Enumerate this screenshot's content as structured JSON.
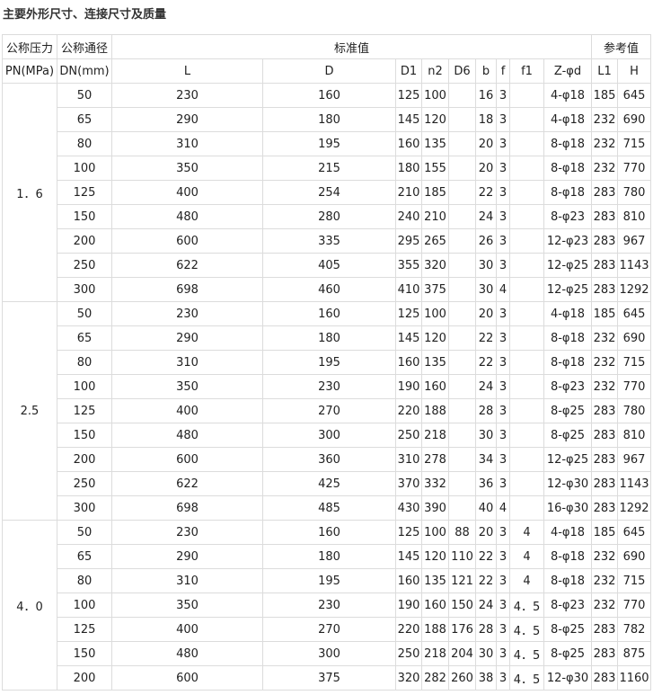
{
  "title": "主要外形尺寸、连接尺寸及质量",
  "header": {
    "pn": "公称压力",
    "dn": "公称通径",
    "std": "标准值",
    "ref": "参考值",
    "pn_unit": "PN(MPa)",
    "dn_unit": "DN(mm)",
    "cols": [
      "L",
      "D",
      "D1",
      "n2",
      "D6",
      "b",
      "f",
      "f1",
      "Z-φd",
      "L1",
      "H"
    ]
  },
  "groups": [
    {
      "pn": "1．6",
      "rows": [
        [
          "50",
          "230",
          "160",
          "125",
          "100",
          "",
          "16",
          "3",
          "",
          "4-φ18",
          "185",
          "645"
        ],
        [
          "65",
          "290",
          "180",
          "145",
          "120",
          "",
          "18",
          "3",
          "",
          "4-φ18",
          "232",
          "690"
        ],
        [
          "80",
          "310",
          "195",
          "160",
          "135",
          "",
          "20",
          "3",
          "",
          "8-φ18",
          "232",
          "715"
        ],
        [
          "100",
          "350",
          "215",
          "180",
          "155",
          "",
          "20",
          "3",
          "",
          "8-φ18",
          "232",
          "770"
        ],
        [
          "125",
          "400",
          "254",
          "210",
          "185",
          "",
          "22",
          "3",
          "",
          "8-φ18",
          "283",
          "780"
        ],
        [
          "150",
          "480",
          "280",
          "240",
          "210",
          "",
          "24",
          "3",
          "",
          "8-φ23",
          "283",
          "810"
        ],
        [
          "200",
          "600",
          "335",
          "295",
          "265",
          "",
          "26",
          "3",
          "",
          "12-φ23",
          "283",
          "967"
        ],
        [
          "250",
          "622",
          "405",
          "355",
          "320",
          "",
          "30",
          "3",
          "",
          "12-φ25",
          "283",
          "1143"
        ],
        [
          "300",
          "698",
          "460",
          "410",
          "375",
          "",
          "30",
          "4",
          "",
          "12-φ25",
          "283",
          "1292"
        ]
      ]
    },
    {
      "pn": "2.5",
      "rows": [
        [
          "50",
          "230",
          "160",
          "125",
          "100",
          "",
          "20",
          "3",
          "",
          "4-φ18",
          "185",
          "645"
        ],
        [
          "65",
          "290",
          "180",
          "145",
          "120",
          "",
          "22",
          "3",
          "",
          "8-φ18",
          "232",
          "690"
        ],
        [
          "80",
          "310",
          "195",
          "160",
          "135",
          "",
          "22",
          "3",
          "",
          "8-φ18",
          "232",
          "715"
        ],
        [
          "100",
          "350",
          "230",
          "190",
          "160",
          "",
          "24",
          "3",
          "",
          "8-φ23",
          "232",
          "770"
        ],
        [
          "125",
          "400",
          "270",
          "220",
          "188",
          "",
          "28",
          "3",
          "",
          "8-φ25",
          "283",
          "780"
        ],
        [
          "150",
          "480",
          "300",
          "250",
          "218",
          "",
          "30",
          "3",
          "",
          "8-φ25",
          "283",
          "810"
        ],
        [
          "200",
          "600",
          "360",
          "310",
          "278",
          "",
          "34",
          "3",
          "",
          "12-φ25",
          "283",
          "967"
        ],
        [
          "250",
          "622",
          "425",
          "370",
          "332",
          "",
          "36",
          "3",
          "",
          "12-φ30",
          "283",
          "1143"
        ],
        [
          "300",
          "698",
          "485",
          "430",
          "390",
          "",
          "40",
          "4",
          "",
          "16-φ30",
          "283",
          "1292"
        ]
      ]
    },
    {
      "pn": "4．0",
      "rows": [
        [
          "50",
          "230",
          "160",
          "125",
          "100",
          "88",
          "20",
          "3",
          "4",
          "4-φ18",
          "185",
          "645"
        ],
        [
          "65",
          "290",
          "180",
          "145",
          "120",
          "110",
          "22",
          "3",
          "4",
          "8-φ18",
          "232",
          "690"
        ],
        [
          "80",
          "310",
          "195",
          "160",
          "135",
          "121",
          "22",
          "3",
          "4",
          "8-φ18",
          "232",
          "715"
        ],
        [
          "100",
          "350",
          "230",
          "190",
          "160",
          "150",
          "24",
          "3",
          "4．5",
          "8-φ23",
          "232",
          "770"
        ],
        [
          "125",
          "400",
          "270",
          "220",
          "188",
          "176",
          "28",
          "3",
          "4．5",
          "8-φ25",
          "283",
          "782"
        ],
        [
          "150",
          "480",
          "300",
          "250",
          "218",
          "204",
          "30",
          "3",
          "4．5",
          "8-φ25",
          "283",
          "875"
        ],
        [
          "200",
          "600",
          "375",
          "320",
          "282",
          "260",
          "38",
          "3",
          "4．5",
          "12-φ30",
          "283",
          "1160"
        ]
      ]
    }
  ]
}
